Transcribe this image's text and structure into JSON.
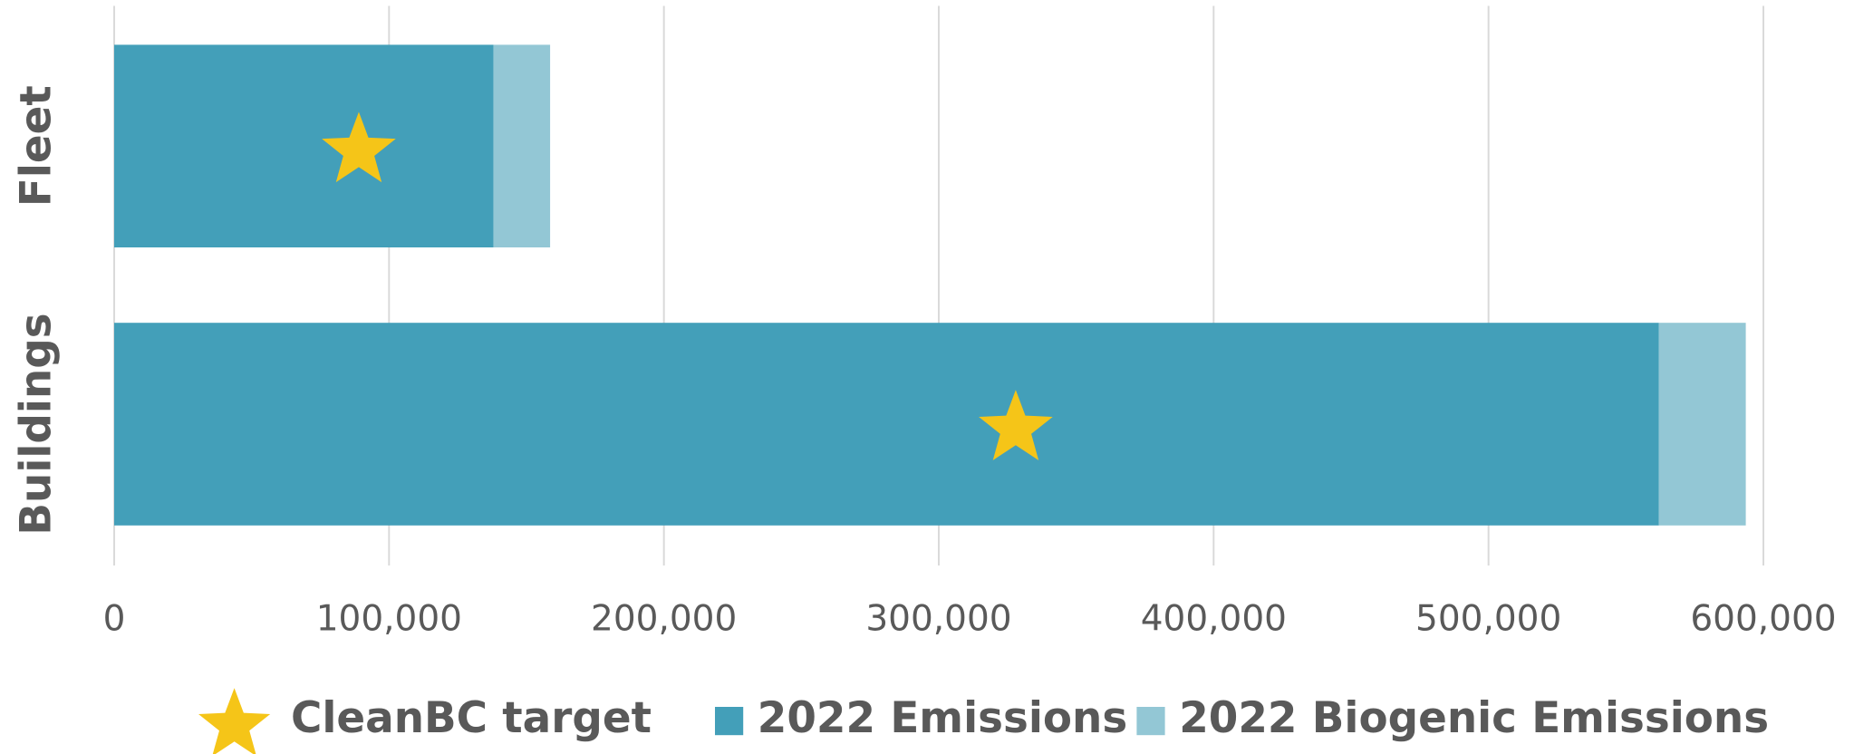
{
  "chart_data": {
    "type": "bar",
    "orientation": "horizontal",
    "stacked": true,
    "categories": [
      "Fleet",
      "Buildings"
    ],
    "series": [
      {
        "name": "2022 Emissions",
        "color": "#439fb9",
        "values": [
          138000,
          562000
        ]
      },
      {
        "name": "2022 Biogenic Emissions",
        "color": "#93c7d5",
        "values": [
          20600,
          31600
        ]
      }
    ],
    "targets": {
      "name": "CleanBC target",
      "color": "#f5c518",
      "values": [
        89000,
        328000
      ]
    },
    "xlim": [
      0,
      600000
    ],
    "xticks": [
      0,
      {
        "value": 100000,
        "label": "100,000"
      },
      {
        "value": 200000,
        "label": "200,000"
      },
      {
        "value": 300000,
        "label": "300,000"
      },
      {
        "value": 400000,
        "label": "400,000"
      },
      {
        "value": 500000,
        "label": "500,000"
      },
      {
        "value": 600000,
        "label": "600,000"
      }
    ],
    "grid": true,
    "legend": "bottom"
  }
}
